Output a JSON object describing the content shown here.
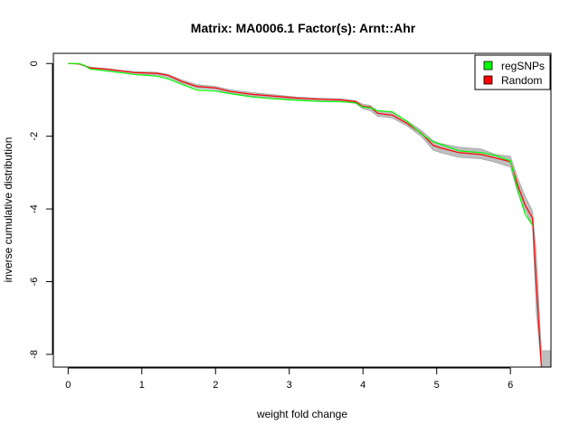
{
  "chart_data": {
    "type": "line",
    "title": "Matrix: MA0006.1 Factor(s): Arnt::Ahr",
    "xlabel": "weight fold change",
    "ylabel": "inverse cumulative distribution",
    "xlim": [
      -0.2,
      6.55
    ],
    "ylim": [
      -8.35,
      0.28
    ],
    "xticks": [
      0,
      1,
      2,
      3,
      4,
      5,
      6
    ],
    "yticks": [
      0,
      -2,
      -4,
      -6,
      -8
    ],
    "grid": false,
    "legend_position": "top-right",
    "legend": [
      {
        "name": "regSNPs",
        "color": "#00ff00"
      },
      {
        "name": "Random",
        "color": "#ff0000"
      }
    ],
    "band": {
      "color": "#bebebe",
      "upper": [
        [
          0.0,
          0.0
        ],
        [
          0.15,
          0.0
        ],
        [
          0.22,
          -0.05
        ],
        [
          0.3,
          -0.1
        ],
        [
          0.5,
          -0.13
        ],
        [
          0.7,
          -0.18
        ],
        [
          0.9,
          -0.22
        ],
        [
          1.2,
          -0.24
        ],
        [
          1.35,
          -0.3
        ],
        [
          1.55,
          -0.45
        ],
        [
          1.75,
          -0.58
        ],
        [
          2.0,
          -0.63
        ],
        [
          2.2,
          -0.72
        ],
        [
          2.5,
          -0.8
        ],
        [
          2.8,
          -0.86
        ],
        [
          3.1,
          -0.92
        ],
        [
          3.4,
          -0.95
        ],
        [
          3.7,
          -0.97
        ],
        [
          3.9,
          -1.02
        ],
        [
          4.0,
          -1.12
        ],
        [
          4.1,
          -1.15
        ],
        [
          4.2,
          -1.3
        ],
        [
          4.4,
          -1.35
        ],
        [
          4.6,
          -1.58
        ],
        [
          4.8,
          -1.85
        ],
        [
          4.95,
          -2.12
        ],
        [
          5.05,
          -2.2
        ],
        [
          5.3,
          -2.3
        ],
        [
          5.6,
          -2.35
        ],
        [
          5.8,
          -2.5
        ],
        [
          6.0,
          -2.55
        ],
        [
          6.1,
          -3.15
        ],
        [
          6.2,
          -3.65
        ],
        [
          6.3,
          -4.05
        ],
        [
          6.35,
          -5.2
        ],
        [
          6.42,
          -7.9
        ],
        [
          6.55,
          -7.9
        ]
      ],
      "lower": [
        [
          0.0,
          0.0
        ],
        [
          0.15,
          -0.02
        ],
        [
          0.22,
          -0.07
        ],
        [
          0.3,
          -0.15
        ],
        [
          0.5,
          -0.2
        ],
        [
          0.7,
          -0.25
        ],
        [
          0.9,
          -0.3
        ],
        [
          1.2,
          -0.32
        ],
        [
          1.35,
          -0.38
        ],
        [
          1.55,
          -0.55
        ],
        [
          1.75,
          -0.68
        ],
        [
          2.0,
          -0.72
        ],
        [
          2.2,
          -0.82
        ],
        [
          2.5,
          -0.9
        ],
        [
          2.8,
          -0.95
        ],
        [
          3.1,
          -1.0
        ],
        [
          3.4,
          -1.03
        ],
        [
          3.7,
          -1.05
        ],
        [
          3.9,
          -1.1
        ],
        [
          4.0,
          -1.25
        ],
        [
          4.1,
          -1.3
        ],
        [
          4.2,
          -1.45
        ],
        [
          4.4,
          -1.5
        ],
        [
          4.6,
          -1.72
        ],
        [
          4.8,
          -2.02
        ],
        [
          4.95,
          -2.38
        ],
        [
          5.05,
          -2.45
        ],
        [
          5.3,
          -2.58
        ],
        [
          5.6,
          -2.62
        ],
        [
          5.8,
          -2.72
        ],
        [
          6.0,
          -2.85
        ],
        [
          6.1,
          -3.55
        ],
        [
          6.2,
          -4.05
        ],
        [
          6.3,
          -4.45
        ],
        [
          6.35,
          -6.8
        ],
        [
          6.42,
          -8.35
        ],
        [
          6.55,
          -8.35
        ]
      ]
    },
    "series": [
      {
        "name": "Random",
        "color": "#ff0000",
        "x": [
          0.0,
          0.15,
          0.22,
          0.3,
          0.5,
          0.7,
          0.9,
          1.2,
          1.35,
          1.55,
          1.75,
          2.0,
          2.2,
          2.5,
          2.8,
          3.1,
          3.4,
          3.7,
          3.9,
          4.0,
          4.1,
          4.2,
          4.4,
          4.6,
          4.8,
          4.95,
          5.05,
          5.3,
          5.6,
          5.8,
          6.0,
          6.1,
          6.2,
          6.3,
          6.35,
          6.42
        ],
        "y": [
          0.0,
          -0.01,
          -0.06,
          -0.12,
          -0.15,
          -0.2,
          -0.25,
          -0.27,
          -0.32,
          -0.5,
          -0.63,
          -0.67,
          -0.77,
          -0.85,
          -0.9,
          -0.95,
          -0.98,
          -1.0,
          -1.05,
          -1.18,
          -1.2,
          -1.37,
          -1.42,
          -1.65,
          -1.93,
          -2.25,
          -2.32,
          -2.45,
          -2.5,
          -2.6,
          -2.7,
          -3.35,
          -3.9,
          -4.25,
          -6.0,
          -8.35
        ]
      },
      {
        "name": "regSNPs",
        "color": "#00ff00",
        "x": [
          0.0,
          0.15,
          0.22,
          0.3,
          0.5,
          0.7,
          0.9,
          1.2,
          1.35,
          1.55,
          1.75,
          2.0,
          2.2,
          2.5,
          2.8,
          3.1,
          3.4,
          3.7,
          3.9,
          4.0,
          4.1,
          4.2,
          4.4,
          4.6,
          4.8,
          4.95,
          5.05,
          5.3,
          5.6,
          5.8,
          6.0,
          6.1,
          6.2,
          6.3
        ],
        "y": [
          0.0,
          0.0,
          -0.05,
          -0.15,
          -0.2,
          -0.25,
          -0.3,
          -0.35,
          -0.42,
          -0.58,
          -0.73,
          -0.76,
          -0.83,
          -0.92,
          -0.97,
          -1.01,
          -1.04,
          -1.05,
          -1.08,
          -1.2,
          -1.22,
          -1.3,
          -1.33,
          -1.6,
          -1.95,
          -2.15,
          -2.22,
          -2.4,
          -2.45,
          -2.53,
          -2.68,
          -3.5,
          -4.15,
          -4.45
        ]
      }
    ]
  }
}
